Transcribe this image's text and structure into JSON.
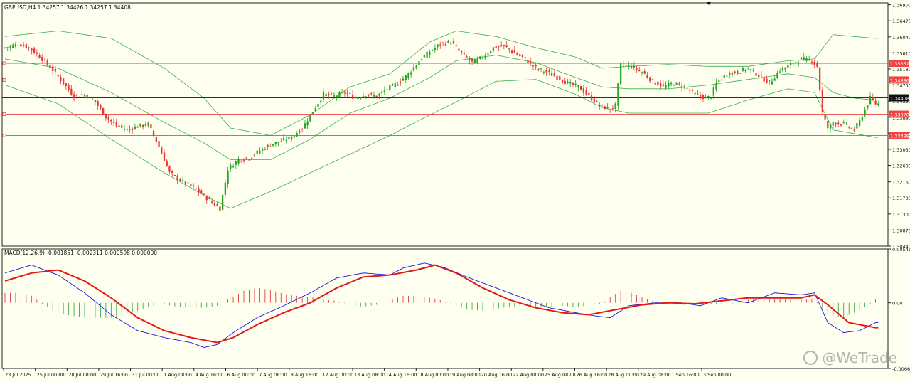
{
  "main_header": "GBPUSD,H4  1.34257 1.34426 1.34257 1.34408",
  "macd_header": "MACD(12,26,9) -0.001851 -0.002311 0.000598 0.000000",
  "watermark": "@WeTrade",
  "colors": {
    "background": "#fffff0",
    "bull": "#26a626",
    "bear": "#e53935",
    "bands": "#36b04a",
    "hline": "#ee4444",
    "current_line": "#111111",
    "macd_line": "#1515e6",
    "signal_line": "#e01818",
    "hist_pos": "#e03b3b",
    "hist_neg": "#3ea83e"
  },
  "chart_data": [
    {
      "type": "candlestick",
      "symbol": "GBPUSD",
      "timeframe": "H4",
      "ohlc": {
        "open": 1.34257,
        "high": 1.34426,
        "low": 1.34257,
        "close": 1.34408
      },
      "y_ticks": [
        "1.36900",
        "1.36470",
        "1.36040",
        "1.35610",
        "1.35180",
        "1.34750",
        "1.34320",
        "1.33890",
        "1.33460",
        "1.33030",
        "1.32600",
        "1.32160",
        "1.31730",
        "1.31300",
        "1.30870",
        "1.30440"
      ],
      "x_ticks": [
        "23 Jul 2025",
        "25 Jul 00:00",
        "28 Jul 08:00",
        "29 Jul 16:00",
        "31 Jul 00:00",
        "1 Aug 08:00",
        "4 Aug 16:00",
        "6 Aug 00:00",
        "7 Aug 08:00",
        "8 Aug 16:00",
        "12 Aug 00:00",
        "13 Aug 08:00",
        "14 Aug 16:00",
        "18 Aug 00:00",
        "19 Aug 08:00",
        "20 Aug 16:00",
        "22 Aug 00:00",
        "25 Aug 08:00",
        "26 Aug 16:00",
        "28 Aug 00:00",
        "29 Aug 08:00",
        "1 Sep 16:00",
        "3 Sep 00:00"
      ],
      "ylim": [
        1.3044,
        1.3695
      ],
      "horizontal_lines": [
        {
          "value": 1.35332,
          "label": "1.35332",
          "role": "resistance"
        },
        {
          "value": 1.34886,
          "label": "1.34886",
          "role": "resistance"
        },
        {
          "value": 1.34408,
          "label": "1.34408",
          "role": "current"
        },
        {
          "value": 1.3397,
          "label": "1.33970",
          "role": "support"
        },
        {
          "value": 1.33399,
          "label": "1.33399",
          "role": "support"
        }
      ],
      "close_path": [
        [
          0,
          1.3575
        ],
        [
          5,
          1.3585
        ],
        [
          9,
          1.3575
        ],
        [
          14,
          1.3545
        ],
        [
          18,
          1.3515
        ],
        [
          22,
          1.348
        ],
        [
          26,
          1.3445
        ],
        [
          30,
          1.345
        ],
        [
          34,
          1.343
        ],
        [
          38,
          1.339
        ],
        [
          42,
          1.3365
        ],
        [
          46,
          1.3355
        ],
        [
          50,
          1.3365
        ],
        [
          54,
          1.337
        ],
        [
          58,
          1.331
        ],
        [
          62,
          1.324
        ],
        [
          66,
          1.322
        ],
        [
          70,
          1.3205
        ],
        [
          74,
          1.3185
        ],
        [
          78,
          1.316
        ],
        [
          81,
          1.3145
        ],
        [
          84,
          1.325
        ],
        [
          88,
          1.3275
        ],
        [
          92,
          1.328
        ],
        [
          96,
          1.33
        ],
        [
          100,
          1.3315
        ],
        [
          104,
          1.3325
        ],
        [
          108,
          1.3335
        ],
        [
          112,
          1.336
        ],
        [
          116,
          1.3405
        ],
        [
          120,
          1.345
        ],
        [
          124,
          1.3445
        ],
        [
          128,
          1.3455
        ],
        [
          132,
          1.344
        ],
        [
          136,
          1.345
        ],
        [
          140,
          1.3445
        ],
        [
          144,
          1.3465
        ],
        [
          148,
          1.348
        ],
        [
          152,
          1.3505
        ],
        [
          156,
          1.354
        ],
        [
          160,
          1.3565
        ],
        [
          164,
          1.3585
        ],
        [
          168,
          1.359
        ],
        [
          172,
          1.356
        ],
        [
          176,
          1.3535
        ],
        [
          180,
          1.355
        ],
        [
          184,
          1.3575
        ],
        [
          188,
          1.358
        ],
        [
          192,
          1.356
        ],
        [
          196,
          1.3545
        ],
        [
          200,
          1.352
        ],
        [
          204,
          1.351
        ],
        [
          208,
          1.3495
        ],
        [
          212,
          1.348
        ],
        [
          216,
          1.347
        ],
        [
          220,
          1.3445
        ],
        [
          224,
          1.342
        ],
        [
          228,
          1.341
        ],
        [
          230,
          1.342
        ],
        [
          232,
          1.353
        ],
        [
          236,
          1.3525
        ],
        [
          240,
          1.351
        ],
        [
          244,
          1.3485
        ],
        [
          248,
          1.347
        ],
        [
          252,
          1.348
        ],
        [
          256,
          1.347
        ],
        [
          260,
          1.345
        ],
        [
          264,
          1.344
        ],
        [
          266,
          1.3445
        ],
        [
          268,
          1.348
        ],
        [
          272,
          1.3505
        ],
        [
          276,
          1.351
        ],
        [
          280,
          1.352
        ],
        [
          284,
          1.35
        ],
        [
          288,
          1.348
        ],
        [
          292,
          1.3515
        ],
        [
          296,
          1.353
        ],
        [
          300,
          1.3545
        ],
        [
          304,
          1.354
        ],
        [
          306,
          1.3525
        ],
        [
          308,
          1.34
        ],
        [
          310,
          1.336
        ],
        [
          312,
          1.3375
        ],
        [
          316,
          1.337
        ],
        [
          320,
          1.3355
        ],
        [
          322,
          1.338
        ],
        [
          324,
          1.341
        ],
        [
          326,
          1.344
        ],
        [
          328,
          1.3425
        ]
      ],
      "bands": {
        "upper": [
          [
            0,
            1.3605
          ],
          [
            20,
            1.362
          ],
          [
            40,
            1.36
          ],
          [
            60,
            1.352
          ],
          [
            75,
            1.344
          ],
          [
            85,
            1.336
          ],
          [
            100,
            1.334
          ],
          [
            115,
            1.3395
          ],
          [
            130,
            1.347
          ],
          [
            145,
            1.3505
          ],
          [
            160,
            1.359
          ],
          [
            170,
            1.362
          ],
          [
            185,
            1.3605
          ],
          [
            200,
            1.3575
          ],
          [
            215,
            1.355
          ],
          [
            225,
            1.352
          ],
          [
            235,
            1.3525
          ],
          [
            250,
            1.353
          ],
          [
            265,
            1.3525
          ],
          [
            280,
            1.3525
          ],
          [
            295,
            1.354
          ],
          [
            305,
            1.3545
          ],
          [
            312,
            1.361
          ],
          [
            320,
            1.3605
          ],
          [
            328,
            1.36
          ]
        ],
        "middle": [
          [
            0,
            1.3545
          ],
          [
            20,
            1.352
          ],
          [
            40,
            1.3455
          ],
          [
            60,
            1.3375
          ],
          [
            75,
            1.332
          ],
          [
            85,
            1.3275
          ],
          [
            100,
            1.3275
          ],
          [
            115,
            1.333
          ],
          [
            130,
            1.34
          ],
          [
            145,
            1.344
          ],
          [
            160,
            1.3495
          ],
          [
            170,
            1.354
          ],
          [
            185,
            1.3555
          ],
          [
            200,
            1.3535
          ],
          [
            215,
            1.3495
          ],
          [
            225,
            1.347
          ],
          [
            235,
            1.3465
          ],
          [
            250,
            1.3465
          ],
          [
            265,
            1.3475
          ],
          [
            280,
            1.349
          ],
          [
            295,
            1.3505
          ],
          [
            305,
            1.3495
          ],
          [
            312,
            1.3455
          ],
          [
            320,
            1.344
          ],
          [
            328,
            1.3435
          ]
        ],
        "lower": [
          [
            0,
            1.3475
          ],
          [
            20,
            1.3425
          ],
          [
            40,
            1.333
          ],
          [
            60,
            1.324
          ],
          [
            75,
            1.318
          ],
          [
            85,
            1.3145
          ],
          [
            100,
            1.319
          ],
          [
            115,
            1.324
          ],
          [
            130,
            1.329
          ],
          [
            145,
            1.334
          ],
          [
            160,
            1.3395
          ],
          [
            170,
            1.343
          ],
          [
            185,
            1.3485
          ],
          [
            200,
            1.349
          ],
          [
            215,
            1.345
          ],
          [
            225,
            1.3415
          ],
          [
            235,
            1.34
          ],
          [
            250,
            1.34
          ],
          [
            265,
            1.34
          ],
          [
            280,
            1.3435
          ],
          [
            295,
            1.3465
          ],
          [
            305,
            1.3455
          ],
          [
            312,
            1.3355
          ],
          [
            320,
            1.3345
          ],
          [
            328,
            1.3335
          ]
        ]
      }
    },
    {
      "type": "line",
      "title": "MACD(12,26,9)",
      "values": {
        "main": -0.001851,
        "signal": -0.002311,
        "histogram": 0.000598,
        "extra": 0.0
      },
      "y_ticks": [
        "0.005416",
        "0.00",
        "-0.006609"
      ],
      "ylim": [
        -0.006609,
        0.005416
      ],
      "macd_line": [
        [
          0,
          0.003
        ],
        [
          10,
          0.0038
        ],
        [
          20,
          0.0028
        ],
        [
          30,
          0.001
        ],
        [
          40,
          -0.0012
        ],
        [
          50,
          -0.0028
        ],
        [
          60,
          -0.0035
        ],
        [
          70,
          -0.004
        ],
        [
          75,
          -0.0045
        ],
        [
          80,
          -0.0042
        ],
        [
          86,
          -0.003
        ],
        [
          95,
          -0.0015
        ],
        [
          105,
          -0.0003
        ],
        [
          115,
          0.001
        ],
        [
          125,
          0.0025
        ],
        [
          135,
          0.003
        ],
        [
          145,
          0.0028
        ],
        [
          150,
          0.0035
        ],
        [
          158,
          0.004
        ],
        [
          165,
          0.0036
        ],
        [
          175,
          0.0025
        ],
        [
          185,
          0.0015
        ],
        [
          195,
          0.0005
        ],
        [
          205,
          -0.0005
        ],
        [
          215,
          -0.001
        ],
        [
          222,
          -0.0013
        ],
        [
          228,
          -0.0015
        ],
        [
          235,
          -0.0003
        ],
        [
          245,
          0.0
        ],
        [
          255,
          0.0
        ],
        [
          262,
          -0.0003
        ],
        [
          270,
          0.0005
        ],
        [
          280,
          0.0
        ],
        [
          290,
          0.001
        ],
        [
          300,
          0.0008
        ],
        [
          305,
          0.001
        ],
        [
          310,
          -0.002
        ],
        [
          316,
          -0.003
        ],
        [
          322,
          -0.0028
        ],
        [
          328,
          -0.002
        ]
      ],
      "signal_line": [
        [
          0,
          0.0022
        ],
        [
          10,
          0.003
        ],
        [
          20,
          0.0033
        ],
        [
          30,
          0.0022
        ],
        [
          40,
          0.0005
        ],
        [
          50,
          -0.0015
        ],
        [
          60,
          -0.0028
        ],
        [
          70,
          -0.0035
        ],
        [
          80,
          -0.004
        ],
        [
          86,
          -0.0035
        ],
        [
          95,
          -0.0022
        ],
        [
          105,
          -0.001
        ],
        [
          115,
          0.0
        ],
        [
          125,
          0.0015
        ],
        [
          135,
          0.0026
        ],
        [
          145,
          0.0028
        ],
        [
          155,
          0.0033
        ],
        [
          162,
          0.0038
        ],
        [
          170,
          0.003
        ],
        [
          180,
          0.0015
        ],
        [
          190,
          0.0003
        ],
        [
          200,
          -0.0005
        ],
        [
          210,
          -0.001
        ],
        [
          220,
          -0.0012
        ],
        [
          230,
          -0.0007
        ],
        [
          240,
          -0.0002
        ],
        [
          250,
          0.0
        ],
        [
          260,
          -0.0001
        ],
        [
          270,
          0.0002
        ],
        [
          280,
          0.0005
        ],
        [
          290,
          0.0005
        ],
        [
          300,
          0.0005
        ],
        [
          305,
          0.0008
        ],
        [
          310,
          -0.0002
        ],
        [
          318,
          -0.002
        ],
        [
          328,
          -0.0025
        ]
      ],
      "histogram": [
        [
          0,
          0.001
        ],
        [
          5,
          0.001
        ],
        [
          10,
          0.0007
        ],
        [
          15,
          -0.0003
        ],
        [
          20,
          -0.001
        ],
        [
          25,
          -0.0013
        ],
        [
          30,
          -0.0015
        ],
        [
          35,
          -0.0015
        ],
        [
          40,
          -0.0015
        ],
        [
          45,
          -0.0012
        ],
        [
          50,
          -0.0008
        ],
        [
          55,
          -0.0003
        ],
        [
          60,
          -0.0002
        ],
        [
          65,
          -0.0004
        ],
        [
          70,
          -0.0005
        ],
        [
          75,
          -0.0005
        ],
        [
          80,
          -0.0003
        ],
        [
          85,
          0.0005
        ],
        [
          90,
          0.0012
        ],
        [
          95,
          0.0015
        ],
        [
          100,
          0.0013
        ],
        [
          105,
          0.0009
        ],
        [
          110,
          0.0007
        ],
        [
          115,
          0.0006
        ],
        [
          120,
          0.0003
        ],
        [
          125,
          0.0002
        ],
        [
          130,
          -0.0002
        ],
        [
          135,
          -0.0004
        ],
        [
          140,
          -0.0002
        ],
        [
          145,
          0.0003
        ],
        [
          150,
          0.0007
        ],
        [
          155,
          0.0007
        ],
        [
          160,
          0.0005
        ],
        [
          165,
          0.0002
        ],
        [
          170,
          -0.0003
        ],
        [
          175,
          -0.0007
        ],
        [
          180,
          -0.0008
        ],
        [
          185,
          -0.0006
        ],
        [
          190,
          -0.0004
        ],
        [
          195,
          -0.0003
        ],
        [
          200,
          -0.0004
        ],
        [
          205,
          -0.0004
        ],
        [
          210,
          -0.0003
        ],
        [
          215,
          -0.0004
        ],
        [
          220,
          -0.0003
        ],
        [
          225,
          -0.0001
        ],
        [
          228,
          0.0006
        ],
        [
          232,
          0.0012
        ],
        [
          236,
          0.001
        ],
        [
          240,
          0.0006
        ],
        [
          245,
          0.0001
        ],
        [
          250,
          -0.0001
        ],
        [
          255,
          -0.0002
        ],
        [
          260,
          -0.0003
        ],
        [
          265,
          -0.0001
        ],
        [
          270,
          -0.0001
        ],
        [
          275,
          -0.0001
        ],
        [
          280,
          0.0003
        ],
        [
          285,
          0.0005
        ],
        [
          290,
          0.0004
        ],
        [
          295,
          0.0004
        ],
        [
          300,
          0.0004
        ],
        [
          305,
          0.0004
        ],
        [
          310,
          -0.0012
        ],
        [
          315,
          -0.0015
        ],
        [
          320,
          -0.001
        ],
        [
          325,
          -0.0003
        ],
        [
          328,
          0.0004
        ]
      ]
    }
  ]
}
